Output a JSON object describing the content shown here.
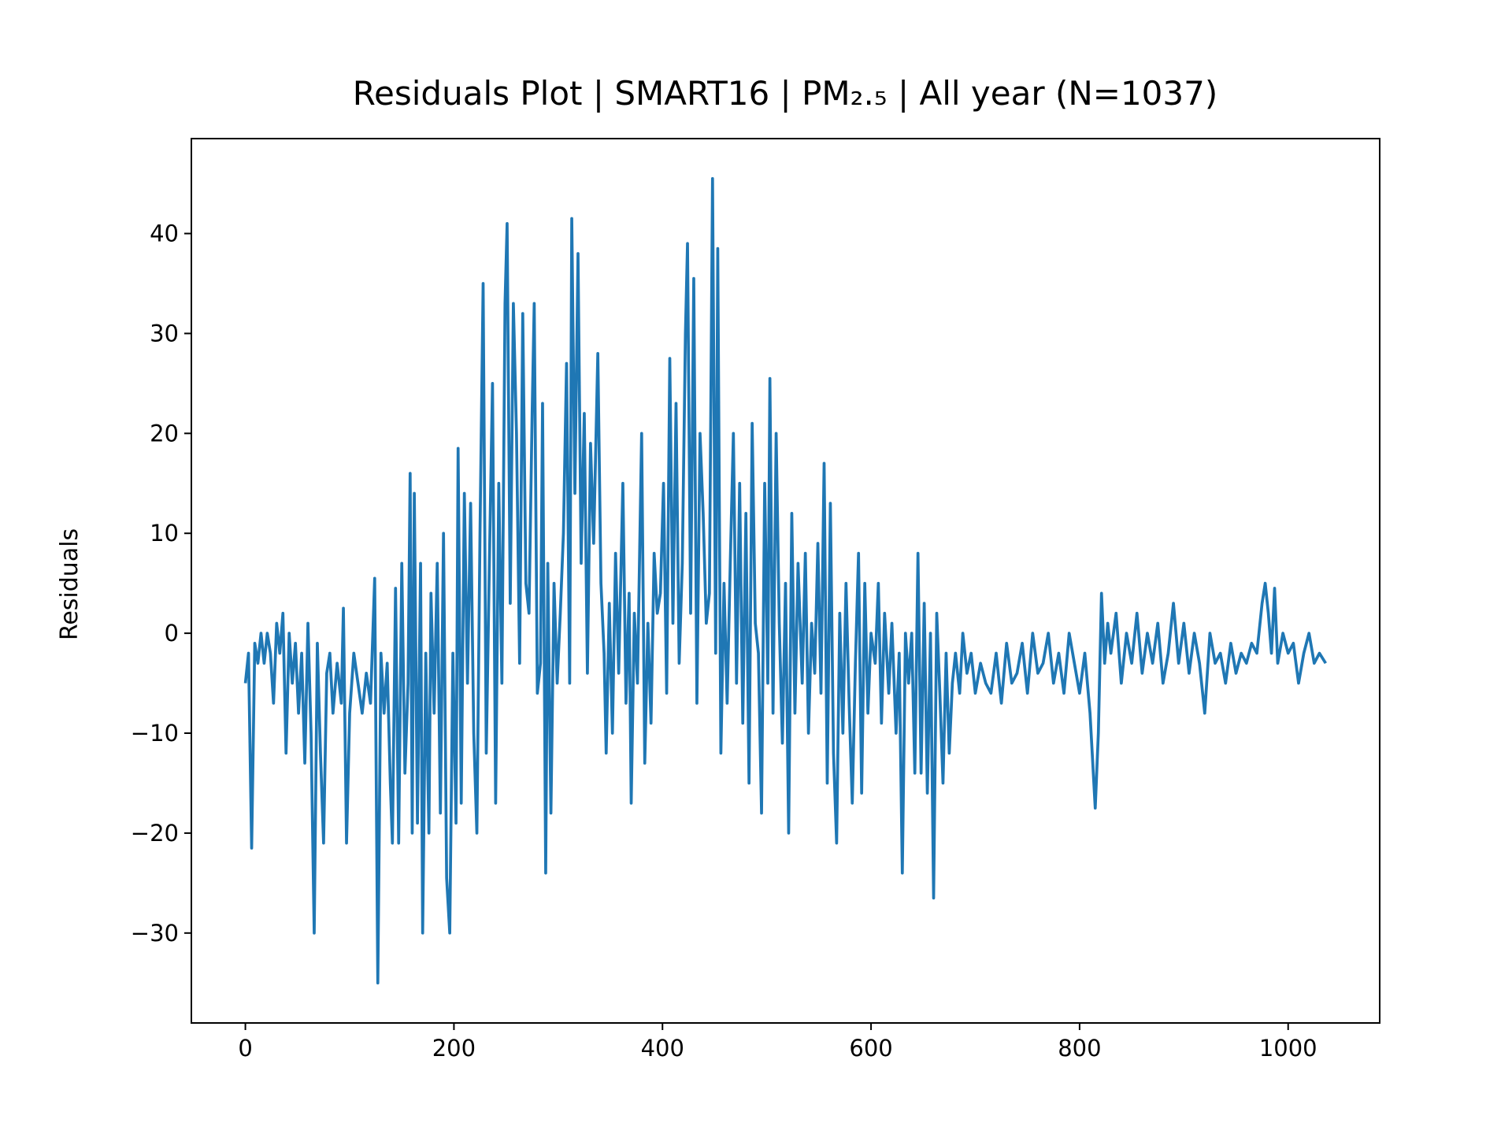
{
  "chart_data": {
    "type": "line",
    "title": "Residuals Plot | SMART16 | PM₂.₅ | All year (N=1037)",
    "y_label": "Residuals",
    "color": "#1f77b4",
    "xlim": [
      -51.8,
      1087.8
    ],
    "ylim": [
      -39.0,
      49.5
    ],
    "xticks": [
      0,
      200,
      400,
      600,
      800,
      1000
    ],
    "yticks": [
      {
        "value": -30,
        "label": "−30"
      },
      {
        "value": -20,
        "label": "−20"
      },
      {
        "value": -10,
        "label": "−10"
      },
      0,
      10,
      20,
      30,
      40
    ],
    "x": [
      0,
      3,
      6,
      9,
      12,
      15,
      18,
      21,
      24,
      27,
      30,
      33,
      36,
      39,
      42,
      45,
      48,
      51,
      54,
      57,
      60,
      63,
      66,
      69,
      72,
      75,
      78,
      81,
      84,
      88,
      92,
      94,
      97,
      100,
      104,
      108,
      112,
      116,
      120,
      124,
      127,
      130,
      133,
      136,
      139,
      141,
      144,
      147,
      150,
      153,
      156,
      158,
      160,
      162,
      165,
      168,
      170,
      173,
      176,
      178,
      181,
      184,
      187,
      190,
      193,
      196,
      199,
      202,
      204,
      207,
      210,
      213,
      216,
      219,
      222,
      225,
      228,
      231,
      234,
      237,
      240,
      243,
      246,
      249,
      251,
      254,
      257,
      260,
      263,
      266,
      269,
      272,
      275,
      277,
      280,
      283,
      285,
      288,
      290,
      293,
      296,
      299,
      302,
      305,
      308,
      311,
      313,
      316,
      319,
      322,
      325,
      328,
      331,
      334,
      338,
      341,
      344,
      346,
      349,
      352,
      355,
      358,
      362,
      365,
      368,
      370,
      373,
      376,
      380,
      383,
      386,
      389,
      392,
      395,
      398,
      401,
      404,
      407,
      410,
      413,
      416,
      419,
      422,
      424,
      427,
      430,
      433,
      436,
      439,
      442,
      445,
      448,
      451,
      453,
      456,
      459,
      462,
      465,
      468,
      471,
      474,
      477,
      480,
      483,
      486,
      489,
      492,
      495,
      498,
      501,
      503,
      506,
      509,
      512,
      515,
      518,
      521,
      524,
      527,
      530,
      534,
      537,
      540,
      543,
      546,
      549,
      552,
      555,
      558,
      561,
      564,
      567,
      570,
      573,
      576,
      579,
      582,
      585,
      588,
      591,
      594,
      597,
      600,
      604,
      607,
      610,
      613,
      617,
      620,
      624,
      627,
      630,
      633,
      636,
      639,
      642,
      645,
      648,
      651,
      654,
      657,
      660,
      663,
      666,
      669,
      672,
      675,
      678,
      681,
      685,
      688,
      692,
      696,
      700,
      705,
      710,
      715,
      720,
      725,
      730,
      735,
      740,
      745,
      750,
      755,
      760,
      765,
      770,
      775,
      780,
      785,
      790,
      795,
      800,
      805,
      810,
      815,
      818,
      821,
      824,
      827,
      830,
      835,
      840,
      845,
      850,
      855,
      860,
      865,
      870,
      875,
      880,
      885,
      890,
      895,
      900,
      905,
      910,
      915,
      920,
      925,
      930,
      935,
      940,
      945,
      950,
      955,
      960,
      965,
      970,
      975,
      978,
      981,
      984,
      987,
      990,
      995,
      1000,
      1005,
      1010,
      1015,
      1020,
      1025,
      1030,
      1036
    ],
    "values": [
      -5,
      -2,
      -21.5,
      -1,
      -3,
      0,
      -3,
      0,
      -2,
      -7,
      1,
      -2,
      2,
      -12,
      0,
      -5,
      -1,
      -8,
      -2,
      -13,
      1,
      -10,
      -30,
      -1,
      -12,
      -21,
      -4,
      -2,
      -8,
      -3,
      -7,
      2.5,
      -21,
      -8,
      -2,
      -5,
      -8,
      -4,
      -7,
      5.5,
      -35,
      -2,
      -8,
      -3,
      -15,
      -21,
      4.5,
      -21,
      7,
      -14,
      -5,
      16,
      -20,
      14,
      -19,
      7,
      -30,
      -2,
      -20,
      4,
      -8,
      7,
      -18,
      10,
      -24.5,
      -30,
      -2,
      -19,
      18.5,
      -17,
      14,
      -5,
      13,
      -10,
      -20,
      10,
      35,
      -12,
      7,
      25,
      -17,
      15,
      -5,
      33,
      41,
      3,
      33,
      20,
      -3,
      32,
      5,
      2,
      22,
      33,
      -6,
      -3,
      23,
      -24,
      7,
      -18,
      5,
      -5,
      2,
      10,
      27,
      -5,
      41.5,
      14,
      38,
      7,
      22,
      -4,
      19,
      9,
      28,
      5,
      -2,
      -12,
      3,
      -10,
      8,
      -4,
      15,
      -7,
      4,
      -17,
      2,
      -5,
      20,
      -13,
      1,
      -9,
      8,
      2,
      4,
      15,
      -6,
      27.5,
      1,
      23,
      -3,
      7,
      30,
      39,
      2,
      35.5,
      -7,
      20,
      12,
      1,
      4,
      45.5,
      -2,
      38.5,
      -12,
      5,
      -7,
      7,
      20,
      -5,
      15,
      -9,
      12,
      -15,
      21,
      1,
      -2,
      -18,
      15,
      -5,
      25.5,
      -8,
      20,
      1,
      -11,
      5,
      -20,
      12,
      -8,
      7,
      -5,
      8,
      -10,
      1,
      -4,
      9,
      -6,
      17,
      -15,
      13,
      -12,
      -21,
      2,
      -10,
      5,
      -7,
      -17,
      -3,
      8,
      -16,
      5,
      -8,
      0,
      -3,
      5,
      -9,
      2,
      -6,
      1,
      -10,
      -2,
      -24,
      0,
      -5,
      0,
      -14,
      8,
      -14,
      3,
      -16,
      0,
      -26.5,
      2,
      -6,
      -15,
      -2,
      -12,
      -5,
      -2,
      -6,
      0,
      -4,
      -2,
      -6,
      -3,
      -5,
      -6,
      -2,
      -7,
      -1,
      -5,
      -4,
      -1,
      -6,
      0,
      -4,
      -3,
      0,
      -5,
      -2,
      -6,
      0,
      -3,
      -6,
      -2,
      -8,
      -17.5,
      -10,
      4,
      -3,
      1,
      -2,
      2,
      -5,
      0,
      -3,
      2,
      -4,
      0,
      -3,
      1,
      -5,
      -2,
      3,
      -3,
      1,
      -4,
      0,
      -3,
      -8,
      0,
      -3,
      -2,
      -5,
      -1,
      -4,
      -2,
      -3,
      -1,
      -2,
      3,
      5,
      2,
      -2,
      4.5,
      -3,
      0,
      -2,
      -1,
      -5,
      -2,
      0,
      -3,
      -2,
      -3
    ]
  }
}
